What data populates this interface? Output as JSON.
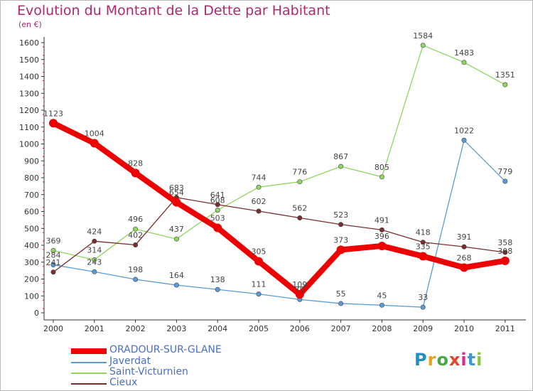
{
  "title": "Evolution du Montant de la Dette par Habitant",
  "unit_label": "(en €)",
  "logo_text": "Proxiti",
  "chart_data": {
    "type": "line",
    "title": "Evolution du Montant de la Dette par Habitant",
    "ylabel": "(en €)",
    "xlabel": "",
    "x": [
      "2000",
      "2001",
      "2002",
      "2003",
      "2004",
      "2005",
      "2006",
      "2007",
      "2008",
      "2009",
      "2010",
      "2011"
    ],
    "ylim": [
      0,
      1600
    ],
    "yticks": [
      0,
      100,
      200,
      300,
      400,
      500,
      600,
      700,
      800,
      900,
      1000,
      1100,
      1200,
      1300,
      1400,
      1500,
      1600
    ],
    "grid": false,
    "legend_position": "bottom-left",
    "series": [
      {
        "name": "ORADOUR-SUR-GLANE",
        "color": "#ee0000",
        "values": [
          1123,
          1004,
          828,
          654,
          503,
          305,
          109,
          373,
          396,
          335,
          268,
          308
        ]
      },
      {
        "name": "Javerdat",
        "color": "#5b9bd5",
        "values": [
          284,
          243,
          198,
          164,
          138,
          111,
          79,
          55,
          45,
          33,
          1022,
          779
        ]
      },
      {
        "name": "Saint-Victurnien",
        "color": "#8ed660",
        "values": [
          369,
          314,
          496,
          437,
          608,
          744,
          776,
          867,
          805,
          1584,
          1483,
          1351
        ]
      },
      {
        "name": "Cieux",
        "color": "#7a2d2d",
        "values": [
          241,
          424,
          402,
          683,
          641,
          602,
          562,
          523,
          491,
          418,
          391,
          358
        ]
      }
    ]
  }
}
